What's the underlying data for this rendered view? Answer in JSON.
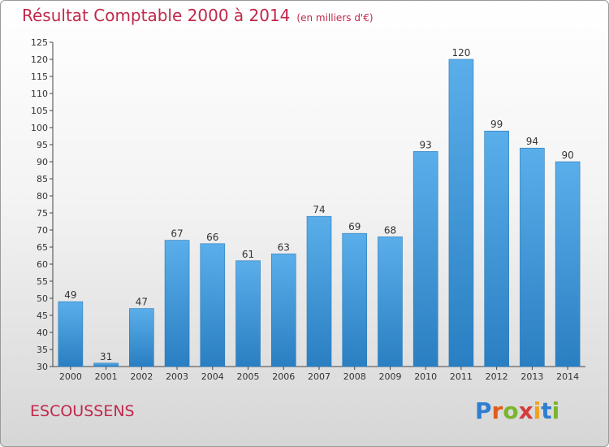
{
  "header": {
    "title": "Résultat Comptable 2000 à 2014",
    "unit": "(en milliers d'€)"
  },
  "footer": {
    "town": "ESCOUSSENS",
    "logo": "Proxiti"
  },
  "colors": {
    "title": "#c0284a",
    "bar_top": "#5aaeea",
    "bar_bottom": "#2a7fc2"
  },
  "chart_data": {
    "type": "bar",
    "title": "Résultat Comptable 2000 à 2014",
    "subtitle": "(en milliers d'€)",
    "categories": [
      "2000",
      "2001",
      "2002",
      "2003",
      "2004",
      "2005",
      "2006",
      "2007",
      "2008",
      "2009",
      "2010",
      "2011",
      "2012",
      "2013",
      "2014"
    ],
    "values": [
      49,
      31,
      47,
      67,
      66,
      61,
      63,
      74,
      69,
      68,
      93,
      120,
      99,
      94,
      90
    ],
    "ylim": [
      30,
      125
    ],
    "yticks": [
      30,
      35,
      40,
      45,
      50,
      55,
      60,
      65,
      70,
      75,
      80,
      85,
      90,
      95,
      100,
      105,
      110,
      115,
      120,
      125
    ],
    "grid": false,
    "xlabel": "",
    "ylabel": ""
  }
}
